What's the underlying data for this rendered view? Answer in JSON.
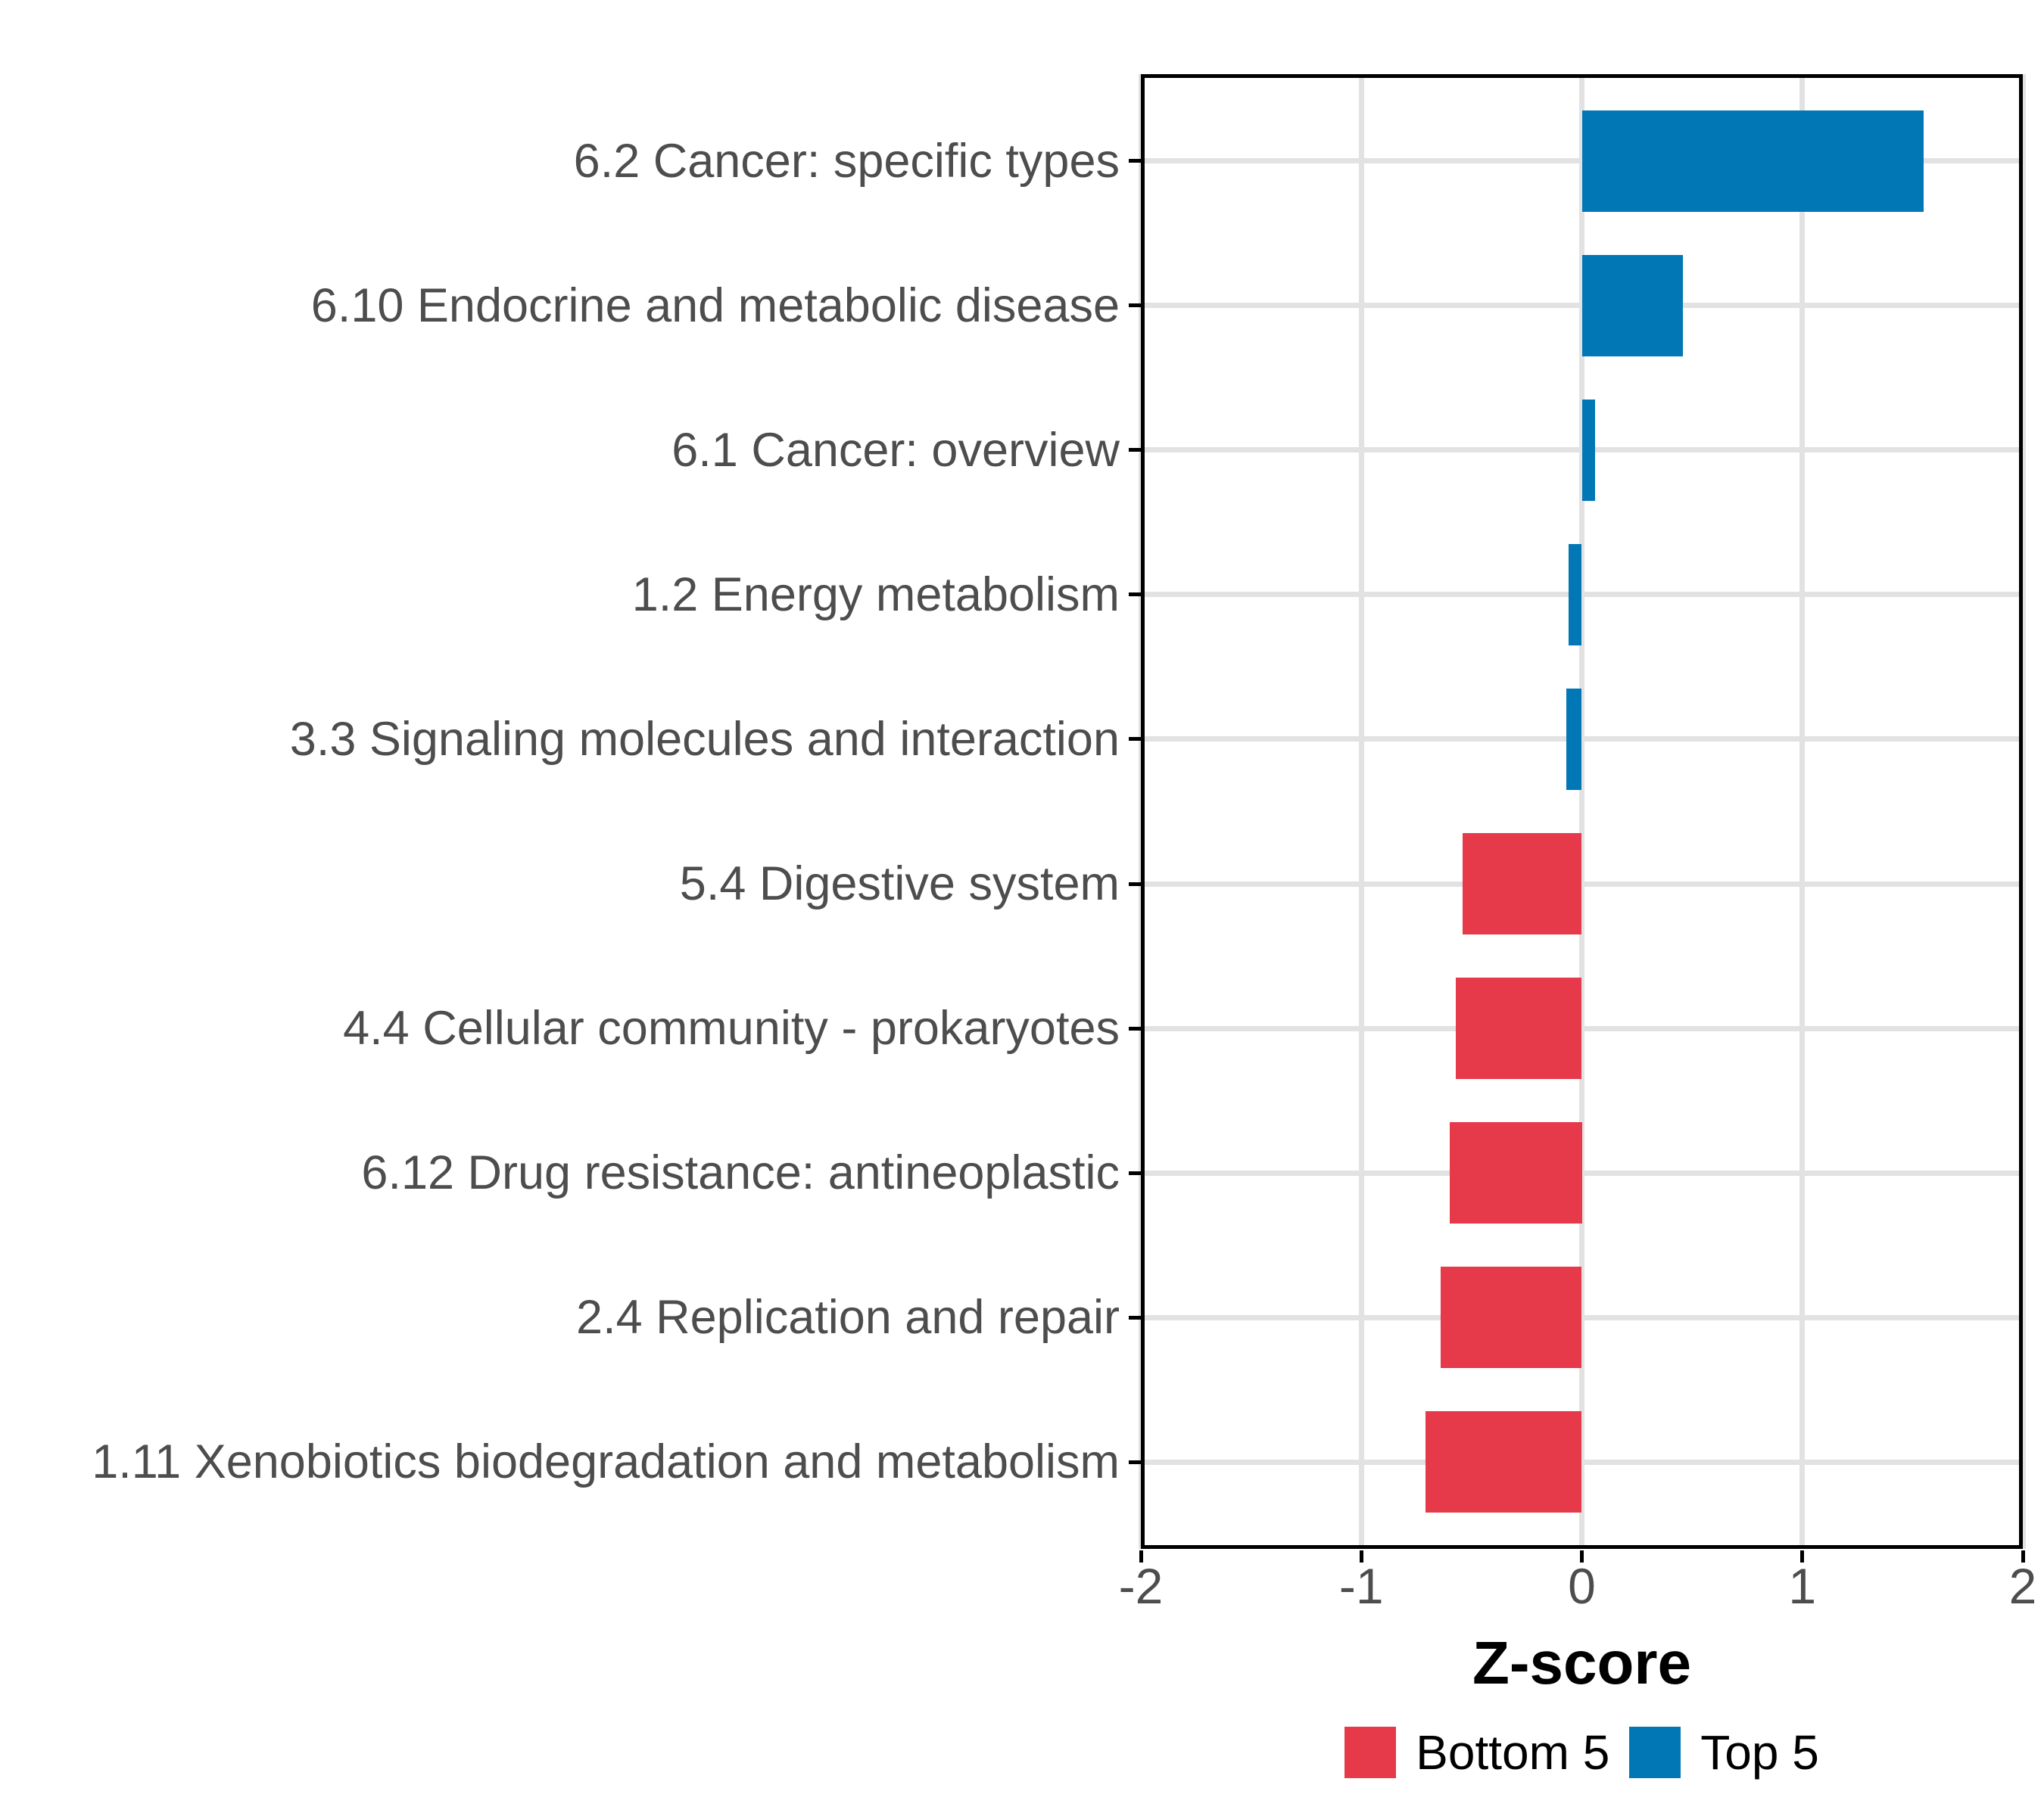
{
  "chart_data": {
    "type": "bar",
    "orientation": "horizontal",
    "title": "",
    "xlabel": "Z-score",
    "ylabel": "",
    "grid": true,
    "legend_position": "bottom",
    "x_axis": {
      "min": -2,
      "max": 2,
      "tick_values": [
        -2,
        -1,
        0,
        1,
        2
      ],
      "tick_labels": [
        "-2",
        "-1",
        "0",
        "1",
        "2"
      ]
    },
    "categories": [
      "6.2 Cancer: specific types",
      "6.10 Endocrine and metabolic disease",
      "6.1 Cancer: overview",
      "1.2 Energy metabolism",
      "3.3 Signaling molecules and interaction",
      "5.4 Digestive system",
      "4.4 Cellular community - prokaryotes",
      "6.12 Drug resistance: antineoplastic",
      "2.4 Replication and repair",
      "1.11 Xenobiotics biodegradation and metabolism"
    ],
    "values": [
      1.55,
      0.46,
      0.06,
      -0.06,
      -0.07,
      -0.54,
      -0.57,
      -0.6,
      -0.64,
      -0.71
    ],
    "groups": [
      "Top 5",
      "Top 5",
      "Top 5",
      "Top 5",
      "Top 5",
      "Bottom 5",
      "Bottom 5",
      "Bottom 5",
      "Bottom 5",
      "Bottom 5"
    ],
    "legend": [
      {
        "label": "Bottom 5",
        "color": "#E6394A"
      },
      {
        "label": "Top 5",
        "color": "#0277B5"
      }
    ],
    "colors": {
      "bottom5_fill": "#E6394A",
      "top5_fill": "#0277B5",
      "gridline": "#E2E2E2",
      "axis_text": "#4D4D4D",
      "panel_border": "#000000",
      "background": "#FFFFFF"
    }
  }
}
